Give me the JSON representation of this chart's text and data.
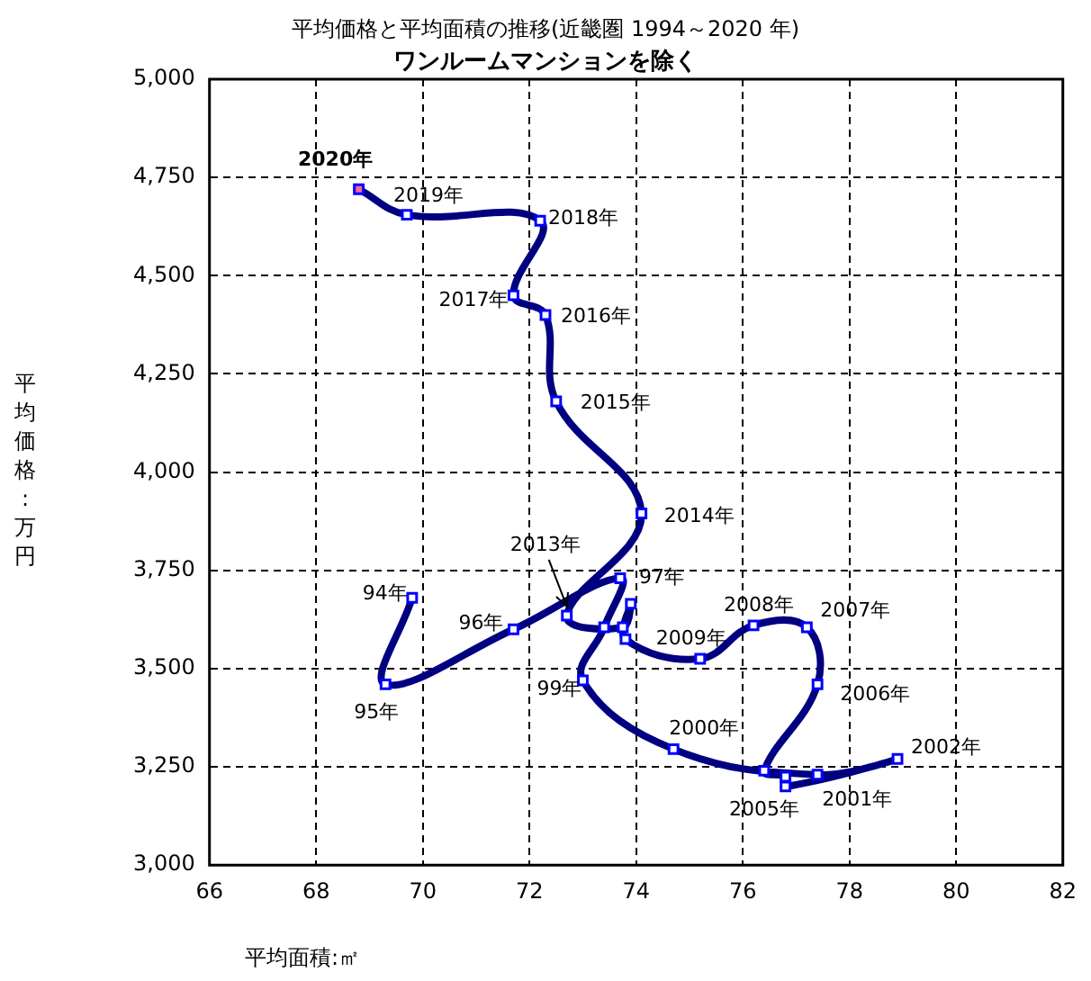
{
  "chart_data": {
    "type": "line",
    "title": "平均価格と平均面積の推移(近畿圏 1994～2020 年)",
    "subtitle": "ワンルームマンションを除く",
    "xlabel": "平均面積:㎡",
    "ylabel": "平均価格:万円",
    "series": [
      {
        "color": "#000080",
        "marker": "square",
        "x": [
          69.8,
          69.3,
          71.7,
          73.7,
          73.4,
          73.0,
          74.7,
          77.4,
          78.9,
          76.8,
          76.8,
          76.4,
          77.4,
          77.2,
          76.2,
          75.2,
          73.8,
          73.9,
          73.75,
          72.7,
          74.1,
          72.5,
          72.3,
          71.7,
          72.2,
          69.7,
          68.8
        ],
        "values": [
          3680,
          3460,
          3600,
          3730,
          3605,
          3470,
          3295,
          3230,
          3270,
          3200,
          3225,
          3240,
          3460,
          3605,
          3610,
          3525,
          3575,
          3665,
          3605,
          3635,
          3895,
          4180,
          4400,
          4450,
          4640,
          4655,
          4720
        ],
        "colors": [
          "#ffffff",
          "#ffffff",
          "#ffffff",
          "#ffffff",
          "#ffffff",
          "#ffffff",
          "#ffffff",
          "#ffffff",
          "#ffffff",
          "#ffffff",
          "#ffffff",
          "#ffffff",
          "#ffffff",
          "#ffffff",
          "#ffffff",
          "#ffffff",
          "#ffffff",
          "#ffffff",
          "#ffffff",
          "#ffffff",
          "#ffffff",
          "#ffffff",
          "#ffffff",
          "#ffffff",
          "#ffffff",
          "#ffffff",
          "#ff6699"
        ]
      }
    ],
    "xlim": [
      66,
      82
    ],
    "xticks": [
      66,
      68,
      70,
      72,
      74,
      76,
      78,
      80,
      82
    ],
    "ylim": [
      3000,
      5000
    ],
    "yticks": [
      {
        "value": 3000,
        "label": "3,000"
      },
      {
        "value": 3250,
        "label": "3,250"
      },
      {
        "value": 3500,
        "label": "3,500"
      },
      {
        "value": 3750,
        "label": "3,750"
      },
      {
        "value": 4000,
        "label": "4,000"
      },
      {
        "value": 4250,
        "label": "4,250"
      },
      {
        "value": 4500,
        "label": "4,500"
      },
      {
        "value": 4750,
        "label": "4,750"
      },
      {
        "value": 5000,
        "label": "5,000"
      }
    ],
    "grid": true,
    "legend": false,
    "annotations": [
      {
        "text": "94年",
        "x": 69.8,
        "y": 3680
      },
      {
        "text": "95年",
        "x": 69.3,
        "y": 3460
      },
      {
        "text": "96年",
        "x": 71.7,
        "y": 3600
      },
      {
        "text": "97年",
        "x": 73.7,
        "y": 3730
      },
      {
        "text": "99年",
        "x": 73.0,
        "y": 3470
      },
      {
        "text": "2000年",
        "x": 74.7,
        "y": 3295
      },
      {
        "text": "2001年",
        "x": 77.4,
        "y": 3230
      },
      {
        "text": "2002年",
        "x": 78.9,
        "y": 3270
      },
      {
        "text": "2005年",
        "x": 76.4,
        "y": 3240
      },
      {
        "text": "2006年",
        "x": 77.4,
        "y": 3460
      },
      {
        "text": "2007年",
        "x": 77.2,
        "y": 3605
      },
      {
        "text": "2008年",
        "x": 76.2,
        "y": 3610
      },
      {
        "text": "2009年",
        "x": 75.2,
        "y": 3525
      },
      {
        "text": "2013年",
        "x": 72.7,
        "y": 3635
      },
      {
        "text": "2014年",
        "x": 74.1,
        "y": 3895
      },
      {
        "text": "2015年",
        "x": 72.5,
        "y": 4180
      },
      {
        "text": "2016年",
        "x": 72.3,
        "y": 4400
      },
      {
        "text": "2017年",
        "x": 71.7,
        "y": 4450
      },
      {
        "text": "2018年",
        "x": 72.2,
        "y": 4640
      },
      {
        "text": "2019年",
        "x": 69.7,
        "y": 4655
      },
      {
        "text": "2020年",
        "x": 68.8,
        "y": 4720
      }
    ]
  }
}
